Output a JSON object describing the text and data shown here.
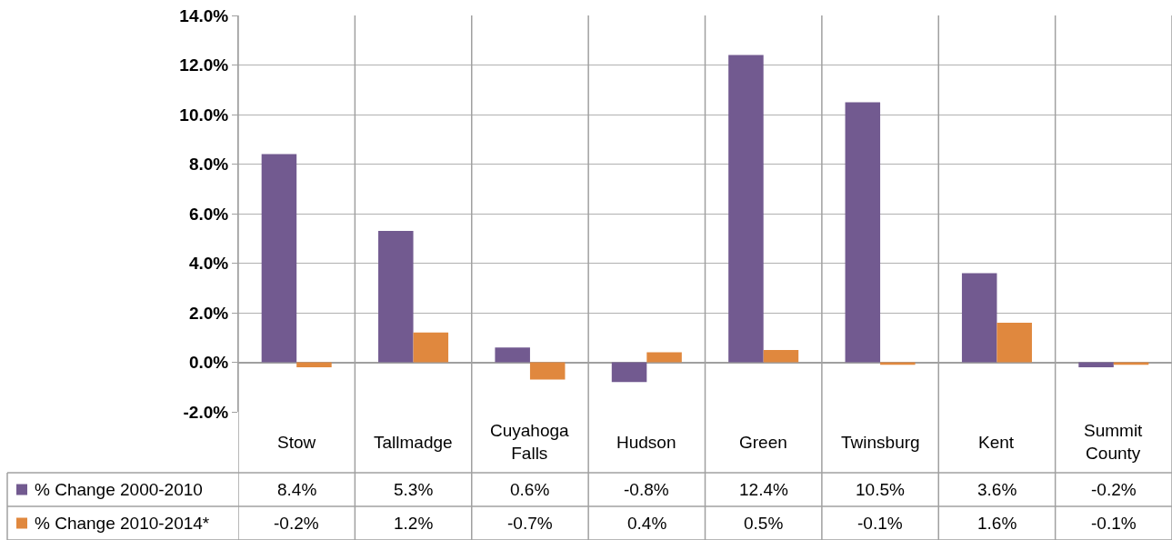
{
  "chart_data": {
    "type": "bar",
    "categories": [
      "Stow",
      "Tallmadge",
      "Cuyahoga Falls",
      "Hudson",
      "Green",
      "Twinsburg",
      "Kent",
      "Summit County"
    ],
    "series": [
      {
        "name": "% Change 2000-2010",
        "color": "#725a90",
        "values": [
          8.4,
          5.3,
          0.6,
          -0.8,
          12.4,
          10.5,
          3.6,
          -0.2
        ],
        "value_labels": [
          "8.4%",
          "5.3%",
          "0.6%",
          "-0.8%",
          "12.4%",
          "10.5%",
          "3.6%",
          "-0.2%"
        ]
      },
      {
        "name": "% Change 2010-2014*",
        "color": "#e0883e",
        "values": [
          -0.2,
          1.2,
          -0.7,
          0.4,
          0.5,
          -0.1,
          1.6,
          -0.1
        ],
        "value_labels": [
          "-0.2%",
          "1.2%",
          "-0.7%",
          "0.4%",
          "0.5%",
          "-0.1%",
          "1.6%",
          "-0.1%"
        ]
      }
    ],
    "ylim": [
      -2,
      14
    ],
    "yticks": [
      {
        "value": -2,
        "label": "-2.0%"
      },
      {
        "value": 0,
        "label": "0.0%"
      },
      {
        "value": 2,
        "label": "2.0%"
      },
      {
        "value": 4,
        "label": "4.0%"
      },
      {
        "value": 6,
        "label": "6.0%"
      },
      {
        "value": 8,
        "label": "8.0%"
      },
      {
        "value": 10,
        "label": "10.0%"
      },
      {
        "value": 12,
        "label": "12.0%"
      },
      {
        "value": 14,
        "label": "14.0%"
      }
    ],
    "grid": "y",
    "legend": "bottom left",
    "data_labels": true
  }
}
